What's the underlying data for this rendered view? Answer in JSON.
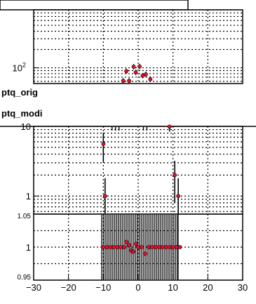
{
  "labels": {
    "orig_hist": "ptq_orig",
    "modi_hist": "ptq_modi"
  },
  "colors": {
    "marker": "#e8102c",
    "frame": "#000000",
    "band_fill": "#c0c0c0",
    "band_hatch": "#000000"
  },
  "chart_data": [
    {
      "type": "scatter",
      "name_label": "",
      "title": "",
      "xlabel": "",
      "ylabel": "",
      "yscale": "log",
      "ylim": [
        55,
        900
      ],
      "grid": true,
      "y_tick_labels": [
        {
          "value": 100,
          "base": "10",
          "exp": "2"
        }
      ],
      "points": [
        {
          "x": -4.3,
          "y": 61
        },
        {
          "x": -2.6,
          "y": 61
        },
        {
          "x": -3.4,
          "y": 88
        },
        {
          "x": -1.3,
          "y": 104
        },
        {
          "x": -0.7,
          "y": 84
        },
        {
          "x": 0.4,
          "y": 105
        },
        {
          "x": 1.3,
          "y": 74
        },
        {
          "x": 2.2,
          "y": 78
        },
        {
          "x": 3.5,
          "y": 65
        }
      ]
    },
    {
      "type": "scatter",
      "title": "",
      "xlabel": "",
      "ylabel": "",
      "yscale": "log",
      "ylim": [
        0.55,
        10
      ],
      "grid": true,
      "y_tick_labels": [
        {
          "value": 10,
          "text": "10"
        },
        {
          "value": 1,
          "text": "1"
        }
      ],
      "points": [
        {
          "x": -10.0,
          "y": 5.6,
          "err": 2.5
        },
        {
          "x": -9.5,
          "y": 1.0,
          "err": 0.8
        },
        {
          "x": 10.5,
          "y": 2.0,
          "err": 1.2
        },
        {
          "x": 11.5,
          "y": 1.0,
          "err": 0.8
        },
        {
          "x": 9.0,
          "y": 9.9,
          "err": 1.5
        }
      ]
    },
    {
      "type": "scatter",
      "title": "",
      "xlabel": "",
      "ylabel": "",
      "xlim": [
        -30,
        30
      ],
      "ylim": [
        0.95,
        1.05
      ],
      "grid": true,
      "x_tick_labels": [
        "−30",
        "−20",
        "−10",
        "0",
        "10",
        "20",
        "30"
      ],
      "x_tick_values": [
        -30,
        -20,
        -10,
        0,
        10,
        20,
        30
      ],
      "y_tick_labels": [
        {
          "value": 1.05,
          "text": "1.05"
        },
        {
          "value": 1.0,
          "text": "1"
        },
        {
          "value": 0.95,
          "text": "0.95"
        }
      ],
      "band": {
        "x_range": [
          -10.5,
          11.5
        ],
        "y_range": [
          0.95,
          1.05
        ]
      },
      "points": [
        {
          "x": -10.0,
          "y": 1.0
        },
        {
          "x": -9.0,
          "y": 1.0
        },
        {
          "x": -8.0,
          "y": 1.0
        },
        {
          "x": -7.0,
          "y": 1.0
        },
        {
          "x": -6.0,
          "y": 1.0
        },
        {
          "x": -5.0,
          "y": 1.0
        },
        {
          "x": -4.0,
          "y": 1.0
        },
        {
          "x": -3.4,
          "y": 1.008
        },
        {
          "x": -2.6,
          "y": 1.003
        },
        {
          "x": -2.0,
          "y": 0.995
        },
        {
          "x": -1.5,
          "y": 0.993
        },
        {
          "x": -0.6,
          "y": 1.005
        },
        {
          "x": 0.0,
          "y": 1.0
        },
        {
          "x": 1.0,
          "y": 1.0
        },
        {
          "x": 2.0,
          "y": 0.99
        },
        {
          "x": 3.0,
          "y": 1.0
        },
        {
          "x": 4.0,
          "y": 1.0
        },
        {
          "x": 5.0,
          "y": 1.0
        },
        {
          "x": 6.0,
          "y": 1.0
        },
        {
          "x": 7.0,
          "y": 1.0
        },
        {
          "x": 8.0,
          "y": 1.0
        },
        {
          "x": 9.0,
          "y": 1.0
        },
        {
          "x": 10.0,
          "y": 1.0
        },
        {
          "x": 11.0,
          "y": 1.0
        },
        {
          "x": 12.0,
          "y": 1.0
        }
      ]
    }
  ]
}
